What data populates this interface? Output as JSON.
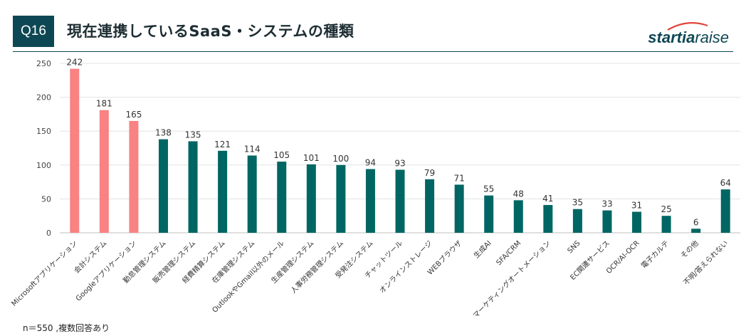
{
  "header": {
    "question_badge": "Q16",
    "title": "現在連携しているSaaS・システムの種類",
    "logo_bold": "startia",
    "logo_light": "raise"
  },
  "footnote": "n＝550 ,複数回答あり",
  "colors": {
    "highlight": "#f98283",
    "default": "#006663",
    "badge": "#0e4754"
  },
  "chart_data": {
    "type": "bar",
    "categories": [
      "Microsoftアプリケーション",
      "会計システム",
      "Googleアプリケーション",
      "勤怠管理システム",
      "販売管理システム",
      "経費精算システム",
      "在庫管理システム",
      "OutlookやGmail以外のメール",
      "生産管理システム",
      "人事労務管理システム",
      "受発注システム",
      "チャットツール",
      "オンラインストレージ",
      "WEBブラウザ",
      "生成AI",
      "SFA/CRM",
      "マーケティングオートメーション",
      "SNS",
      "EC関連サービス",
      "OCR/AI-OCR",
      "電子カルテ",
      "その他",
      "不明/答えられない"
    ],
    "values": [
      242,
      181,
      165,
      138,
      135,
      121,
      114,
      105,
      101,
      100,
      94,
      93,
      79,
      71,
      55,
      48,
      41,
      35,
      33,
      31,
      25,
      6,
      64
    ],
    "highlighted_count": 3,
    "ylim": [
      0,
      250
    ],
    "yticks": [
      0,
      50,
      100,
      150,
      200,
      250
    ],
    "grid": true,
    "title": "",
    "xlabel": "",
    "ylabel": ""
  }
}
